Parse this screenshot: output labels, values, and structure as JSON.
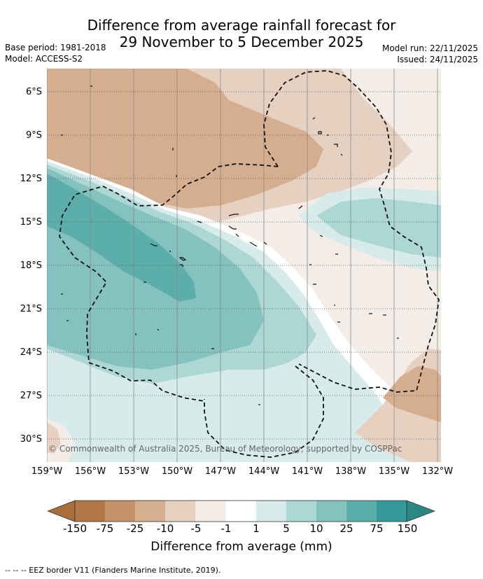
{
  "title_line1": "Difference from average rainfall forecast for",
  "title_line2": "29 November to 5 December 2025",
  "base_period": "Base period: 1981-2018",
  "model": "Model: ACCESS-S2",
  "model_run": "Model run: 22/11/2025",
  "issued": "Issued: 24/11/2025",
  "copyright": "© Commonwealth of Australia 2025, Bureau of Meteorology, supported by COSPPac",
  "lat_labels": [
    "6°S",
    "9°S",
    "12°S",
    "15°S",
    "18°S",
    "21°S",
    "24°S",
    "27°S",
    "30°S"
  ],
  "lon_labels": [
    "159°W",
    "156°W",
    "153°W",
    "150°W",
    "147°W",
    "144°W",
    "141°W",
    "138°W",
    "135°W",
    "132°W"
  ],
  "colorbar": {
    "ticks": [
      "-150",
      "-75",
      "-25",
      "-10",
      "-5",
      "-1",
      "1",
      "5",
      "10",
      "25",
      "75",
      "150"
    ],
    "title": "Difference from average (mm)",
    "colors": [
      "#a86f3a",
      "#b17845",
      "#c39268",
      "#d4ae8e",
      "#e6d0c0",
      "#f4ece6",
      "#ffffff",
      "#d6ebea",
      "#acd7d5",
      "#83c2be",
      "#5caeaa",
      "#33999a",
      "#2a8784"
    ]
  },
  "legend_note": "--  --  -- EEZ border V11 (Flanders Marine Institute, 2019)."
}
